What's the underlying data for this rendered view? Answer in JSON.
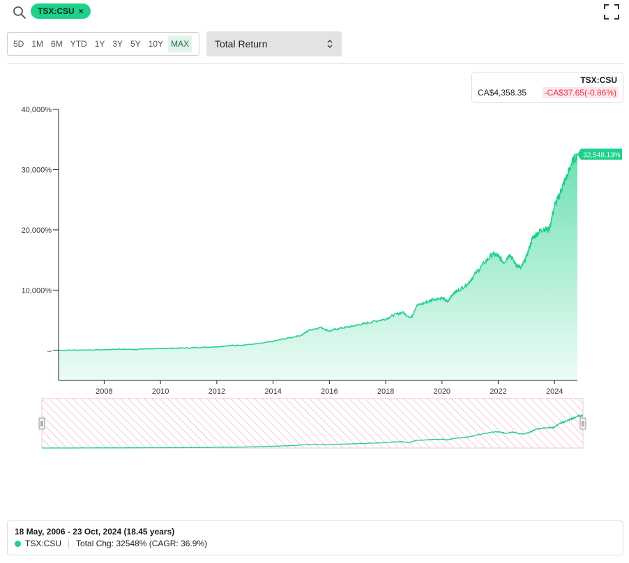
{
  "header": {
    "search_icon": "search-icon",
    "ticker_chip": "TSX:CSU",
    "chip_close": "×",
    "fullscreen_icon": "fullscreen-icon"
  },
  "toolbar": {
    "ranges": [
      "5D",
      "1M",
      "6M",
      "YTD",
      "1Y",
      "3Y",
      "5Y",
      "10Y",
      "MAX"
    ],
    "active_range": "MAX",
    "metric": "Total Return",
    "select_icon": "sort-arrows-icon"
  },
  "quote": {
    "ticker": "TSX:CSU",
    "price": "CA$4,358.35",
    "change": "-CA$37.65(-0.86%)"
  },
  "colors": {
    "line": "#1ed08a",
    "negative": "#e0394c",
    "range_hatch": "#f4a5bd"
  },
  "chart_data": {
    "type": "area",
    "series": [
      {
        "name": "TSX:CSU",
        "x": [
          2006.38,
          2007,
          2008,
          2008.5,
          2009,
          2009.5,
          2010,
          2010.5,
          2011,
          2011.5,
          2012,
          2012.5,
          2013,
          2013.5,
          2014,
          2014.5,
          2015,
          2015.3,
          2015.7,
          2016,
          2016.3,
          2016.7,
          2017,
          2017.3,
          2017.7,
          2018,
          2018.3,
          2018.6,
          2018.9,
          2019.1,
          2019.4,
          2019.7,
          2020,
          2020.2,
          2020.4,
          2020.6,
          2020.9,
          2021.2,
          2021.5,
          2021.8,
          2022,
          2022.2,
          2022.4,
          2022.6,
          2022.8,
          2023,
          2023.2,
          2023.4,
          2023.6,
          2023.8,
          2024,
          2024.15,
          2024.3,
          2024.45,
          2024.6,
          2024.81
        ],
        "y": [
          0,
          50,
          100,
          200,
          150,
          250,
          300,
          350,
          400,
          500,
          600,
          800,
          900,
          1100,
          1500,
          2000,
          2500,
          3400,
          3800,
          3200,
          3600,
          3900,
          4200,
          4500,
          4900,
          5200,
          5900,
          6300,
          5400,
          7400,
          7900,
          8500,
          8700,
          8000,
          9500,
          10000,
          11000,
          12800,
          14500,
          16000,
          15600,
          14600,
          16000,
          14400,
          13600,
          15500,
          18500,
          19500,
          20200,
          20000,
          24000,
          25500,
          27500,
          29000,
          31000,
          32548.13
        ]
      }
    ],
    "end_label": "32,548.13%",
    "ylim": [
      -5000,
      40000
    ],
    "xlim": [
      2006.38,
      2024.81
    ],
    "y_ticks": [
      0,
      10000,
      20000,
      30000,
      40000
    ],
    "y_tick_labels": [
      "–",
      "10,000%",
      "20,000%",
      "30,000%",
      "40,000%"
    ],
    "x_ticks": [
      2008,
      2010,
      2012,
      2014,
      2016,
      2018,
      2020,
      2022,
      2024
    ],
    "x_tick_labels": [
      "2008",
      "2010",
      "2012",
      "2014",
      "2016",
      "2018",
      "2020",
      "2022",
      "2024"
    ],
    "grid": false,
    "navigator": true
  },
  "footer": {
    "date_range": "18 May, 2006 - 23 Oct, 2024 (18.45 years)",
    "legend_ticker": "TSX:CSU",
    "total_change": "Total Chg: 32548% (CAGR: 36.9%)"
  }
}
